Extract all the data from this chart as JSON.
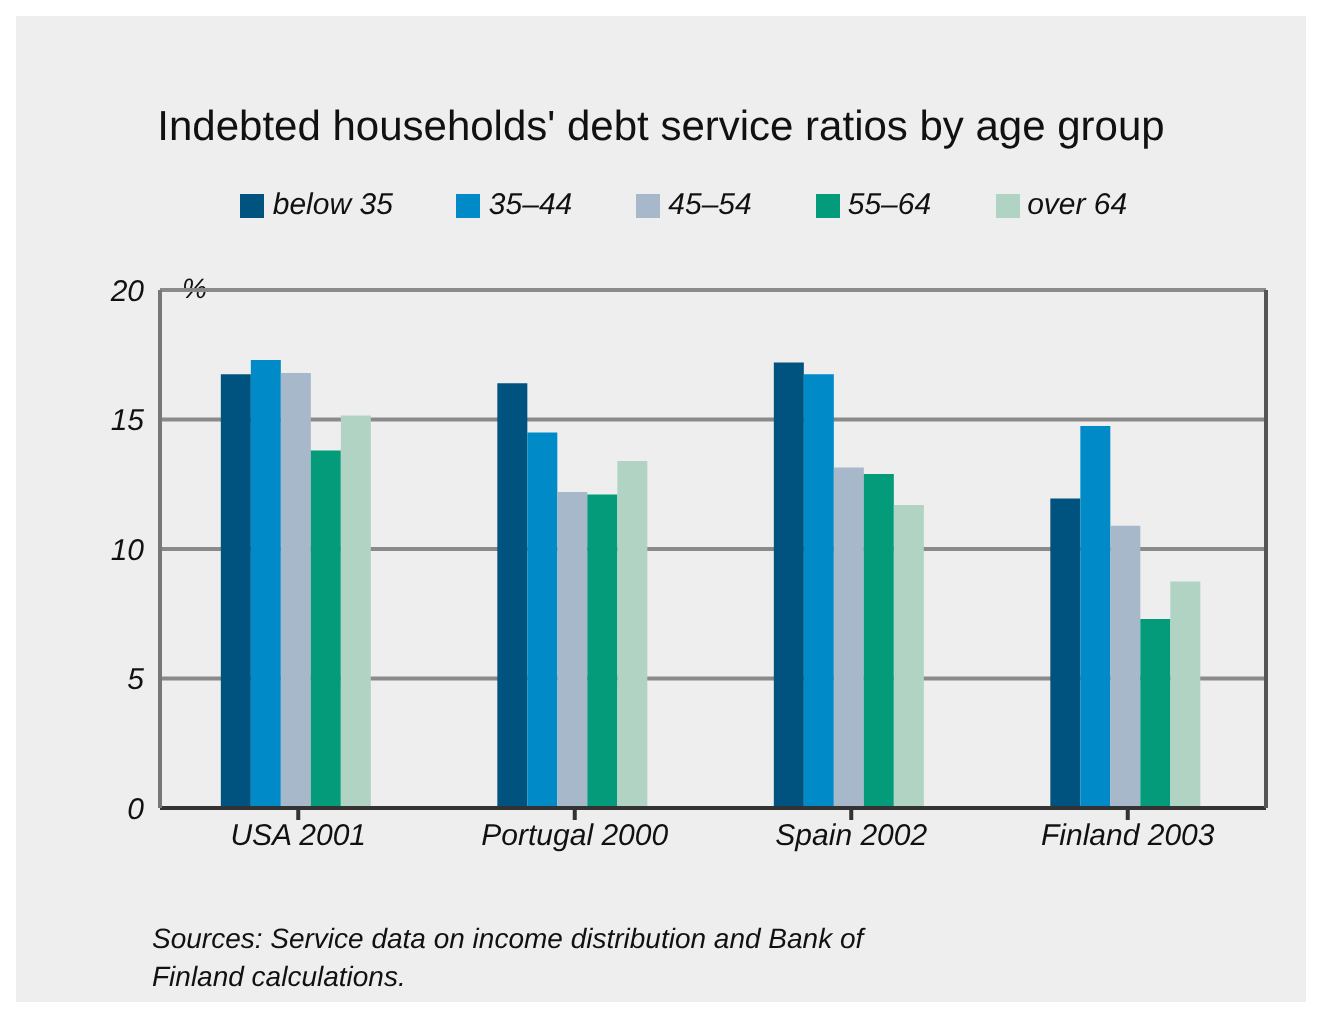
{
  "chart_data": {
    "type": "bar",
    "title": "Indebted households' debt service ratios by age group",
    "ylabel": "%",
    "categories": [
      "USA 2001",
      "Portugal 2000",
      "Spain 2002",
      "Finland 2003"
    ],
    "series": [
      {
        "name": "below 35",
        "color": "#00527f",
        "values": [
          16.75,
          16.4,
          17.2,
          11.95
        ]
      },
      {
        "name": "35–44",
        "color": "#008bc8",
        "values": [
          17.3,
          14.5,
          16.75,
          14.75
        ]
      },
      {
        "name": "45–54",
        "color": "#a7b8ca",
        "values": [
          16.8,
          12.2,
          13.15,
          10.9
        ]
      },
      {
        "name": "55–64",
        "color": "#039b7a",
        "values": [
          13.8,
          12.1,
          12.9,
          7.3
        ]
      },
      {
        "name": "over 64",
        "color": "#b1d3c3",
        "values": [
          15.15,
          13.4,
          11.7,
          8.75
        ]
      }
    ],
    "ylim": [
      0,
      20
    ],
    "yticks": [
      0,
      5,
      10,
      15,
      20
    ],
    "grid": "y",
    "legend": "top",
    "annotations": [
      "Sources: Service data on income distribution and Bank of Finland calculations."
    ]
  }
}
